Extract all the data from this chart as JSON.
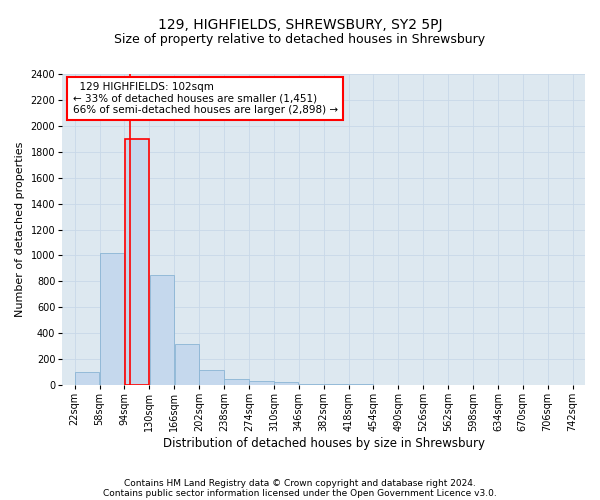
{
  "title": "129, HIGHFIELDS, SHREWSBURY, SY2 5PJ",
  "subtitle": "Size of property relative to detached houses in Shrewsbury",
  "xlabel": "Distribution of detached houses by size in Shrewsbury",
  "ylabel": "Number of detached properties",
  "footnote1": "Contains HM Land Registry data © Crown copyright and database right 2024.",
  "footnote2": "Contains public sector information licensed under the Open Government Licence v3.0.",
  "annotation_line1": "  129 HIGHFIELDS: 102sqm",
  "annotation_line2": "← 33% of detached houses are smaller (1,451)",
  "annotation_line3": "66% of semi-detached houses are larger (2,898) →",
  "property_size": 102,
  "bin_edges": [
    22,
    58,
    94,
    130,
    166,
    202,
    238,
    274,
    310,
    346,
    382,
    418,
    454,
    490,
    526,
    562,
    598,
    634,
    670,
    706,
    742
  ],
  "bar_values": [
    100,
    1020,
    1900,
    850,
    320,
    120,
    50,
    35,
    25,
    10,
    5,
    5,
    2,
    1,
    0,
    0,
    0,
    0,
    0,
    0
  ],
  "bar_color": "#c5d8ed",
  "bar_edge_color": "#8ab4d4",
  "vline_color": "red",
  "vline_x": 102,
  "annotation_box_facecolor": "white",
  "annotation_box_edgecolor": "red",
  "grid_color": "#c8d8e8",
  "background_color": "#dde8f0",
  "ylim": [
    0,
    2400
  ],
  "yticks": [
    0,
    200,
    400,
    600,
    800,
    1000,
    1200,
    1400,
    1600,
    1800,
    2000,
    2200,
    2400
  ],
  "title_fontsize": 10,
  "subtitle_fontsize": 9,
  "xlabel_fontsize": 8.5,
  "ylabel_fontsize": 8,
  "tick_fontsize": 7,
  "annotation_fontsize": 7.5,
  "footnote_fontsize": 6.5
}
